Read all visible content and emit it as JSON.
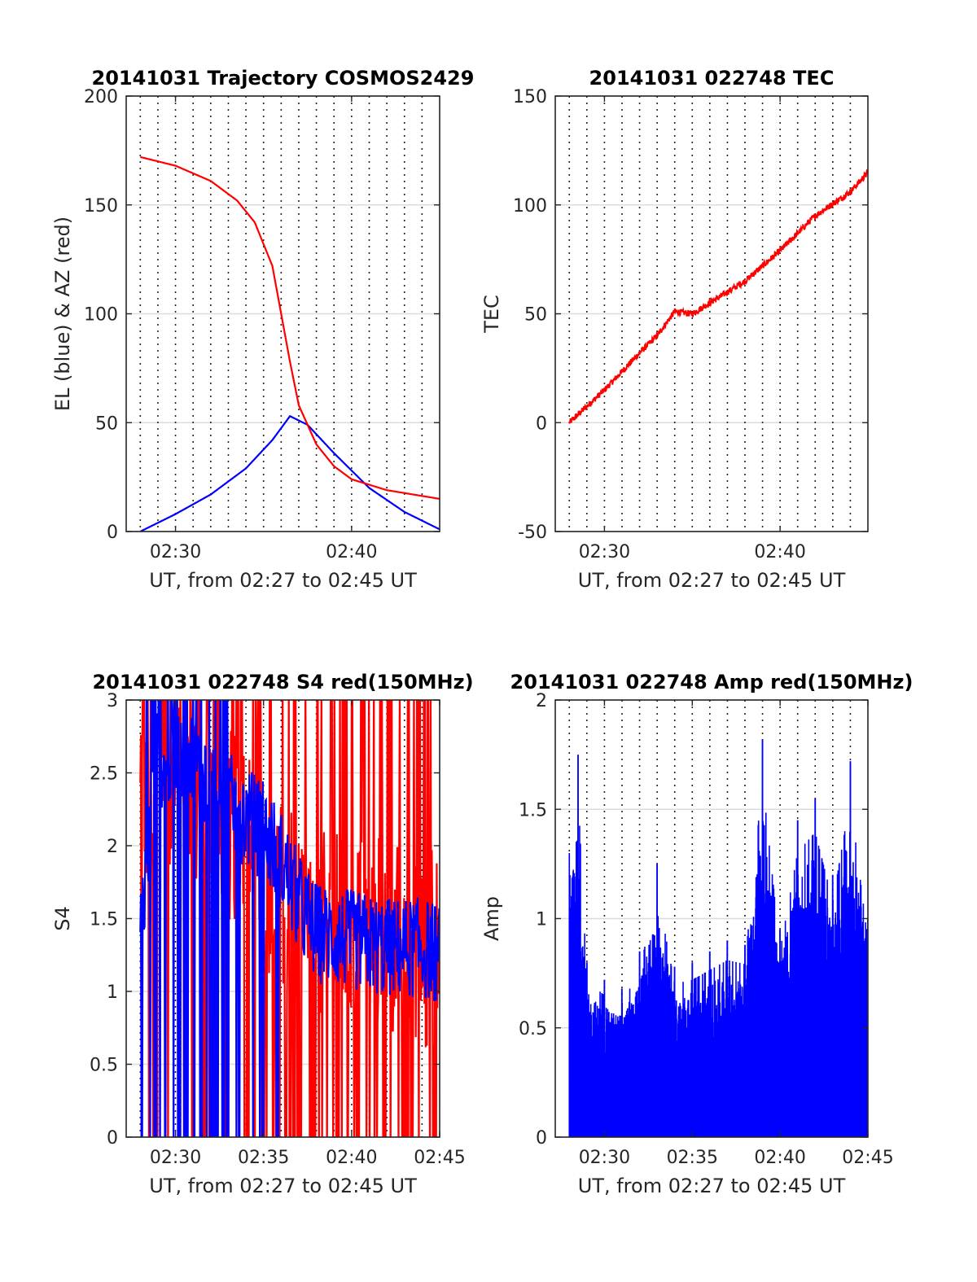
{
  "chart_data": [
    {
      "type": "line",
      "title": "20141031 Trajectory COSMOS2429",
      "xlabel": "UT, from 02:27 to 02:45 UT",
      "ylabel": "EL (blue) & AZ (red)",
      "xlim_minutes_after_0200": [
        27.2,
        45
      ],
      "ylim": [
        0,
        200
      ],
      "x_tick_labels": [
        "02:30",
        "02:40"
      ],
      "y_tick_labels": [
        "0",
        "50",
        "100",
        "150",
        "200"
      ],
      "grid": "dotted vertical + light horizontal",
      "series": [
        {
          "color": "#0000ff",
          "x_minutes": [
            28.0,
            30.0,
            32.0,
            34.0,
            35.5,
            36.5,
            37.5,
            39.0,
            41.0,
            43.0,
            45.0
          ],
          "values": [
            0,
            8,
            17,
            29,
            42,
            53,
            49,
            36,
            20,
            9,
            1
          ]
        },
        {
          "color": "#ff0000",
          "x_minutes": [
            28.0,
            30.0,
            32.0,
            33.5,
            34.5,
            35.5,
            36.0,
            36.5,
            37.0,
            38.0,
            39.0,
            40.0,
            42.0,
            45.0
          ],
          "values": [
            172,
            168,
            161,
            152,
            142,
            122,
            100,
            78,
            58,
            40,
            30,
            24,
            19,
            15
          ]
        }
      ]
    },
    {
      "type": "line",
      "title": "20141031 022748 TEC",
      "xlabel": "UT, from 02:27 to 02:45 UT",
      "ylabel": "TEC",
      "xlim_minutes_after_0200": [
        27.2,
        45
      ],
      "ylim": [
        -50,
        150
      ],
      "x_tick_labels": [
        "02:30",
        "02:40"
      ],
      "y_tick_labels": [
        "-50",
        "0",
        "50",
        "100",
        "150"
      ],
      "grid": "dotted vertical + light horizontal",
      "series": [
        {
          "color": "#ff0000",
          "x_minutes": [
            28.0,
            30.0,
            32.0,
            33.0,
            34.0,
            35.0,
            36.0,
            38.0,
            40.0,
            42.0,
            44.0,
            45.0
          ],
          "values": [
            0,
            15,
            32,
            40,
            51,
            50,
            55,
            65,
            79,
            95,
            106,
            115
          ]
        }
      ]
    },
    {
      "type": "line",
      "title": "20141031 022748 S4 red(150MHz)",
      "xlabel": "UT, from 02:27 to 02:45 UT",
      "ylabel": "S4",
      "xlim_minutes_after_0200": [
        27.2,
        45
      ],
      "ylim": [
        0,
        3
      ],
      "x_tick_labels": [
        "02:30",
        "02:35",
        "02:40",
        "02:45"
      ],
      "y_tick_labels": [
        "0",
        "0.5",
        "1",
        "1.5",
        "2",
        "2.5",
        "3"
      ],
      "grid": "dotted vertical + light horizontal",
      "series": [
        {
          "color": "#ff0000",
          "style": "noisy, frequently saturating between 0 and 3",
          "x_minutes": [
            28.0,
            30.0,
            32.0,
            34.0,
            36.0,
            38.0,
            40.0,
            42.0,
            44.0,
            45.0
          ],
          "values": [
            2.5,
            2.4,
            2.1,
            2.2,
            1.6,
            1.4,
            1.4,
            1.4,
            1.3,
            1.3
          ]
        },
        {
          "color": "#0000ff",
          "style": "noisy",
          "x_minutes": [
            28.0,
            29.0,
            31.0,
            33.0,
            35.0,
            36.0,
            37.0,
            38.0,
            40.0,
            42.0,
            44.0,
            45.0
          ],
          "values": [
            1.4,
            2.6,
            2.6,
            2.3,
            2.1,
            1.9,
            1.6,
            1.4,
            1.35,
            1.3,
            1.3,
            1.25
          ]
        }
      ]
    },
    {
      "type": "bar",
      "title": "20141031 022748 Amp red(150MHz)",
      "xlabel": "UT, from 02:27 to 02:45 UT",
      "ylabel": "Amp",
      "xlim_minutes_after_0200": [
        27.2,
        45
      ],
      "ylim": [
        0,
        2
      ],
      "x_tick_labels": [
        "02:30",
        "02:35",
        "02:40",
        "02:45"
      ],
      "y_tick_labels": [
        "0",
        "0.5",
        "1",
        "1.5",
        "2"
      ],
      "grid": "dotted vertical + light horizontal",
      "series": [
        {
          "color": "#0000ff",
          "style": "dense spikes from baseline 0",
          "x_minutes": [
            28.0,
            28.5,
            29.0,
            30.0,
            31.0,
            32.0,
            33.0,
            34.0,
            35.0,
            36.0,
            37.0,
            38.0,
            39.0,
            40.0,
            41.0,
            42.0,
            43.0,
            44.0,
            45.0
          ],
          "values": [
            1.3,
            1.75,
            0.8,
            0.72,
            0.68,
            0.85,
            1.25,
            0.78,
            0.8,
            0.85,
            0.9,
            0.88,
            1.82,
            0.95,
            1.45,
            1.55,
            1.2,
            1.72,
            1.0
          ]
        }
      ]
    }
  ]
}
